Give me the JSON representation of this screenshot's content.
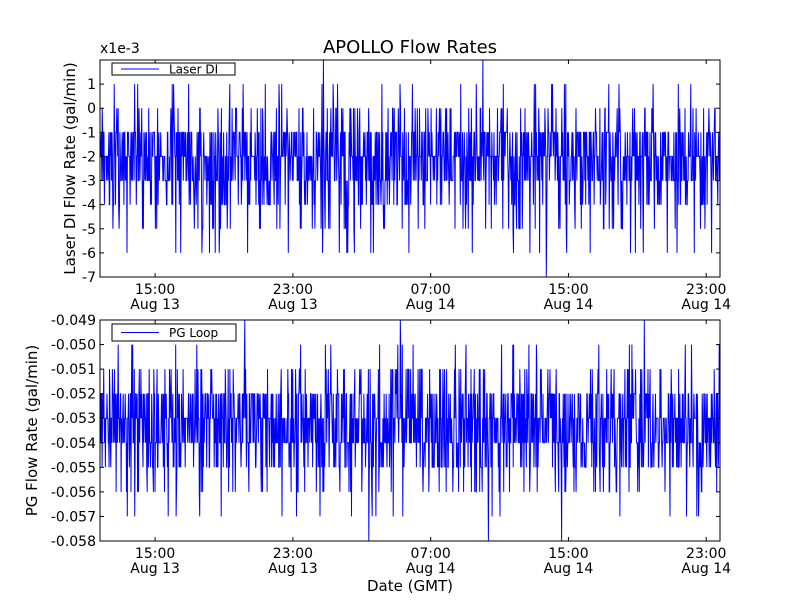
{
  "figure": {
    "title": "APOLLO Flow Rates",
    "xlabel": "Date (GMT)"
  },
  "colors": {
    "series": "#0000ff",
    "axes": "#000000",
    "background": "#ffffff"
  },
  "chart_data": [
    {
      "type": "line",
      "id": "top",
      "title": "APOLLO Flow Rates",
      "ylabel": "Laser DI Flow Rate (gal/min)",
      "scale_label": "x1e-3",
      "legend_label": "Laser DI",
      "legend_position": "top-left",
      "xlim_hours": [
        0,
        45
      ],
      "ylim": [
        -7,
        2
      ],
      "yticks": [
        1,
        0,
        -1,
        -2,
        -3,
        -4,
        -5,
        -6,
        -7
      ],
      "ytick_labels": [
        "1",
        "0",
        "-1",
        "-2",
        "-3",
        "-4",
        "-5",
        "-6",
        "-7"
      ],
      "xtick_hours": [
        4,
        14,
        24,
        34,
        44
      ],
      "xtick_labels": [
        [
          "15:00",
          "Aug 13"
        ],
        [
          "23:00",
          "Aug 13"
        ],
        [
          "07:00",
          "Aug 14"
        ],
        [
          "15:00",
          "Aug 14"
        ],
        [
          "23:00",
          "Aug 14"
        ]
      ],
      "series": [
        {
          "name": "Laser DI",
          "baseline": -2.5,
          "noise_levels": [
            -1,
            -2,
            -3,
            -4,
            0,
            -5,
            1,
            -6
          ],
          "spikes": [
            [
              16.2,
              2
            ],
            [
              27.8,
              2
            ],
            [
              32.4,
              -7
            ]
          ],
          "n_points": 1400,
          "seed": 11
        }
      ]
    },
    {
      "type": "line",
      "id": "bottom",
      "ylabel": "PG Flow Rate (gal/min)",
      "legend_label": "PG Loop",
      "legend_position": "top-left",
      "xlim_hours": [
        0,
        45
      ],
      "ylim": [
        -0.058,
        -0.049
      ],
      "yticks": [
        -0.049,
        -0.05,
        -0.051,
        -0.052,
        -0.053,
        -0.054,
        -0.055,
        -0.056,
        -0.057,
        -0.058
      ],
      "ytick_labels": [
        "-0.049",
        "-0.050",
        "-0.051",
        "-0.052",
        "-0.053",
        "-0.054",
        "-0.055",
        "-0.056",
        "-0.057",
        "-0.058"
      ],
      "xtick_hours": [
        4,
        14,
        24,
        34,
        44
      ],
      "xtick_labels": [
        [
          "15:00",
          "Aug 13"
        ],
        [
          "23:00",
          "Aug 13"
        ],
        [
          "07:00",
          "Aug 14"
        ],
        [
          "15:00",
          "Aug 14"
        ],
        [
          "23:00",
          "Aug 14"
        ]
      ],
      "series": [
        {
          "name": "PG Loop",
          "baseline": -0.0535,
          "noise_levels": [
            -0.053,
            -0.054,
            -0.052,
            -0.055,
            -0.051,
            -0.056,
            -0.05,
            -0.057
          ],
          "spikes": [
            [
              10.5,
              -0.049
            ],
            [
              21.8,
              -0.049
            ],
            [
              19.5,
              -0.058
            ],
            [
              28.2,
              -0.058
            ],
            [
              33.5,
              -0.058
            ],
            [
              39.5,
              -0.049
            ]
          ],
          "n_points": 1500,
          "seed": 23
        }
      ]
    }
  ]
}
